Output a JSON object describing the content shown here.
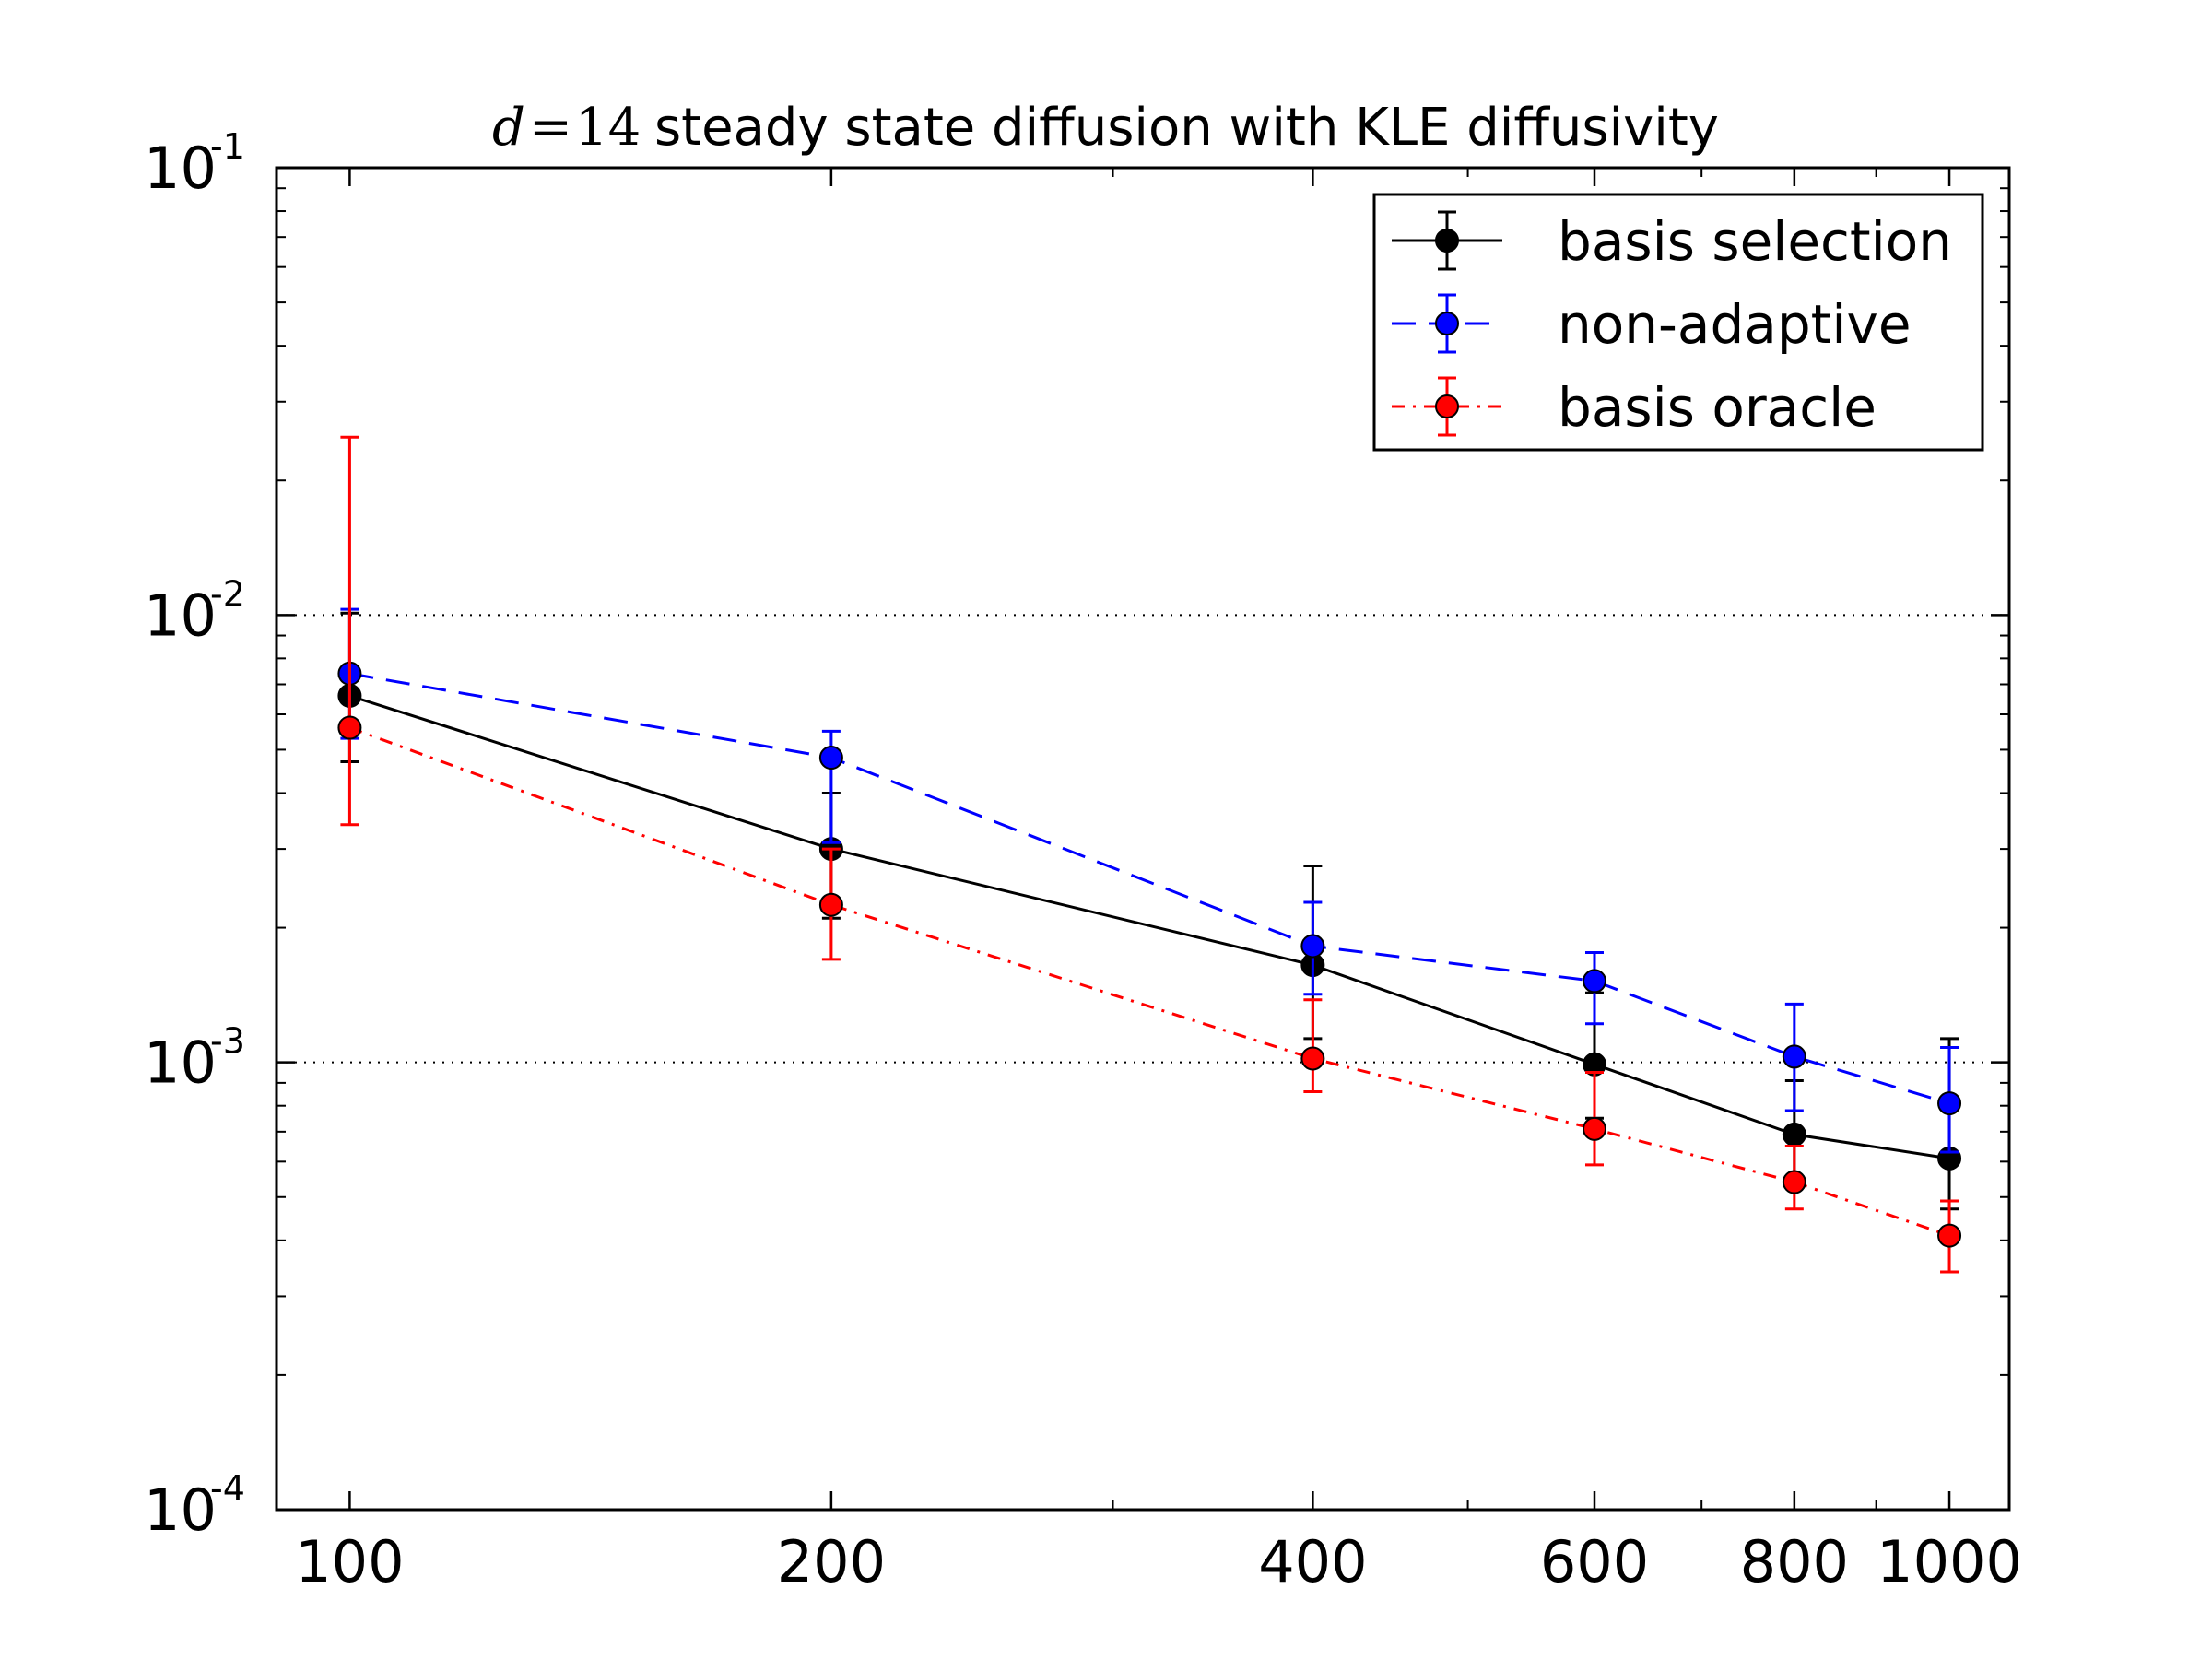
{
  "chart_data": {
    "type": "line",
    "title": "steady state diffusion with KLE diffusivity",
    "title_math": "d = 14",
    "title_math_parts": [
      "d",
      "=",
      "14"
    ],
    "xlabel": "",
    "ylabel": "",
    "xscale": "log",
    "yscale": "log",
    "xlim": [
      90,
      1090
    ],
    "ylim": [
      0.0001,
      0.1
    ],
    "x_ticks": [
      100,
      200,
      400,
      600,
      800,
      1000
    ],
    "x_tick_labels": [
      "100",
      "200",
      "400",
      "600",
      "800",
      "1000"
    ],
    "y_ticks": [
      0.0001,
      0.001,
      0.01,
      0.1
    ],
    "y_tick_labels": [
      {
        "base": "10",
        "exp": "-4"
      },
      {
        "base": "10",
        "exp": "-3"
      },
      {
        "base": "10",
        "exp": "-2"
      },
      {
        "base": "10",
        "exp": "-1"
      }
    ],
    "grid": {
      "y_major": true,
      "style": "dotted"
    },
    "legend_position": "top-right",
    "series": [
      {
        "name": "basis selection",
        "color": "#000000",
        "linestyle": "solid",
        "x": [
          100,
          200,
          400,
          600,
          800,
          1000
        ],
        "y": [
          0.0066,
          0.003,
          0.00165,
          0.00099,
          0.00069,
          0.00061
        ],
        "err_low": [
          0.0047,
          0.0021,
          0.00113,
          0.00075,
          0.00053,
          0.00047
        ],
        "err_high": [
          0.0101,
          0.004,
          0.00275,
          0.00143,
          0.00091,
          0.00113
        ]
      },
      {
        "name": "non-adaptive",
        "color": "#0000ff",
        "linestyle": "dashed",
        "x": [
          100,
          200,
          400,
          600,
          800,
          1000
        ],
        "y": [
          0.0074,
          0.0048,
          0.00182,
          0.00152,
          0.00103,
          0.00081
        ],
        "err_low": [
          0.0053,
          0.0031,
          0.00142,
          0.00122,
          0.00078,
          0.00063
        ],
        "err_high": [
          0.0103,
          0.0055,
          0.00228,
          0.00176,
          0.00135,
          0.00108
        ]
      },
      {
        "name": "basis oracle",
        "color": "#ff0000",
        "linestyle": "dashdot",
        "x": [
          100,
          200,
          400,
          600,
          800,
          1000
        ],
        "y": [
          0.0056,
          0.00225,
          0.00102,
          0.00071,
          0.00054,
          0.00041
        ],
        "err_low": [
          0.0034,
          0.0017,
          0.00086,
          0.00059,
          0.00047,
          0.00034
        ],
        "err_high": [
          0.025,
          0.003,
          0.00138,
          0.00095,
          0.00065,
          0.00049
        ]
      }
    ]
  }
}
